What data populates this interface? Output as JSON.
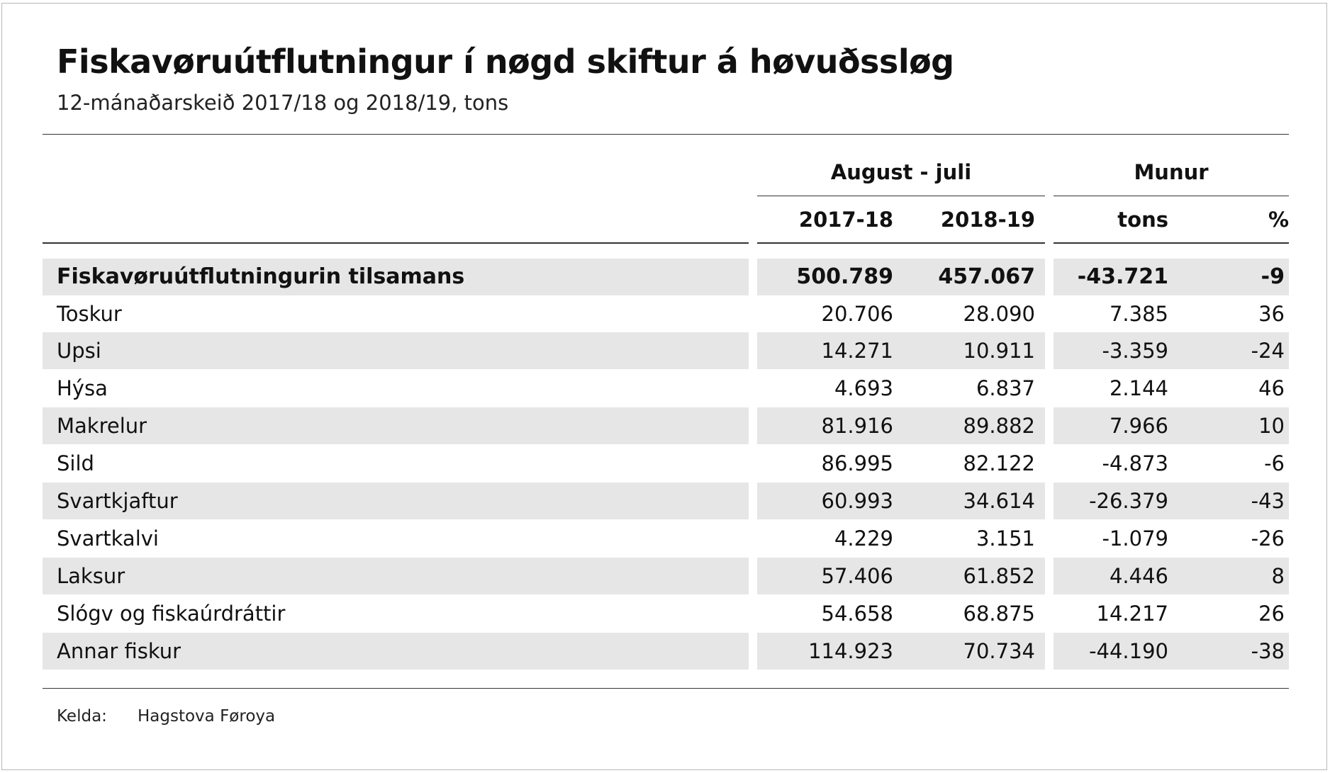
{
  "header": {
    "title": "Fiskavøruútflutningur í nøgd skiftur á høvuðssløg",
    "subtitle": "12-mánaðarskeið 2017/18 og 2018/19, tons"
  },
  "table": {
    "group_headers": {
      "period": "August - juli",
      "change": "Munur"
    },
    "column_headers": [
      "2017-18",
      "2018-19",
      "tons",
      "%"
    ],
    "total": {
      "label": "Fiskavøruútflutningurin tilsamans",
      "v2017_18": "500.789",
      "v2018_19": "457.067",
      "diff_tons": "-43.721",
      "diff_pct": "-9"
    },
    "rows": [
      {
        "label": "Toskur",
        "v2017_18": "20.706",
        "v2018_19": "28.090",
        "diff_tons": "7.385",
        "diff_pct": "36"
      },
      {
        "label": "Upsi",
        "v2017_18": "14.271",
        "v2018_19": "10.911",
        "diff_tons": "-3.359",
        "diff_pct": "-24"
      },
      {
        "label": "Hýsa",
        "v2017_18": "4.693",
        "v2018_19": "6.837",
        "diff_tons": "2.144",
        "diff_pct": "46"
      },
      {
        "label": "Makrelur",
        "v2017_18": "81.916",
        "v2018_19": "89.882",
        "diff_tons": "7.966",
        "diff_pct": "10"
      },
      {
        "label": "Sild",
        "v2017_18": "86.995",
        "v2018_19": "82.122",
        "diff_tons": "-4.873",
        "diff_pct": "-6"
      },
      {
        "label": "Svartkjaftur",
        "v2017_18": "60.993",
        "v2018_19": "34.614",
        "diff_tons": "-26.379",
        "diff_pct": "-43"
      },
      {
        "label": "Svartkalvi",
        "v2017_18": "4.229",
        "v2018_19": "3.151",
        "diff_tons": "-1.079",
        "diff_pct": "-26"
      },
      {
        "label": "Laksur",
        "v2017_18": "57.406",
        "v2018_19": "61.852",
        "diff_tons": "4.446",
        "diff_pct": "8"
      },
      {
        "label": "Slógv og fiskaúrdráttir",
        "v2017_18": "54.658",
        "v2018_19": "68.875",
        "diff_tons": "14.217",
        "diff_pct": "26"
      },
      {
        "label": "Annar fiskur",
        "v2017_18": "114.923",
        "v2018_19": "70.734",
        "diff_tons": "-44.190",
        "diff_pct": "-38"
      }
    ]
  },
  "footer": {
    "source_label": "Kelda:",
    "source_value": "Hagstova Føroya"
  },
  "colors": {
    "row_shade": "#e6e6e6",
    "rule": "#333333",
    "frame": "#b7b7b7"
  }
}
